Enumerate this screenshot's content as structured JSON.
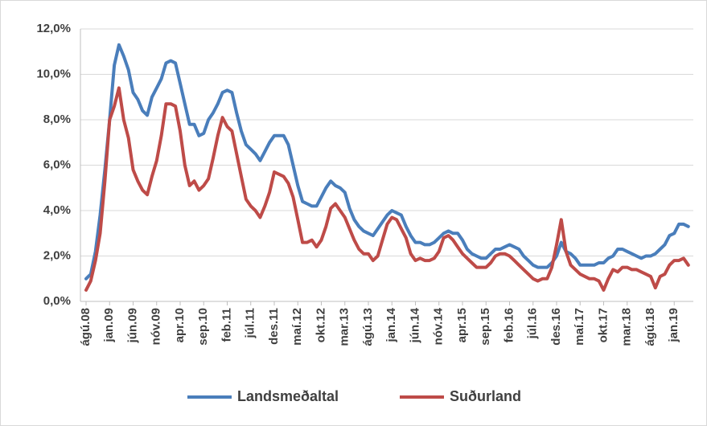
{
  "chart_data": {
    "type": "line",
    "categories": [
      "ágú.08",
      null,
      null,
      null,
      null,
      "jan.09",
      null,
      null,
      null,
      null,
      "jún.09",
      null,
      null,
      null,
      null,
      "nóv.09",
      null,
      null,
      null,
      null,
      "apr.10",
      null,
      null,
      null,
      null,
      "sep.10",
      null,
      null,
      null,
      null,
      "feb.11",
      null,
      null,
      null,
      null,
      "júl.11",
      null,
      null,
      null,
      null,
      "des.11",
      null,
      null,
      null,
      null,
      "maí.12",
      null,
      null,
      null,
      null,
      "okt.12",
      null,
      null,
      null,
      null,
      "mar.13",
      null,
      null,
      null,
      null,
      "ágú.13",
      null,
      null,
      null,
      null,
      "jan.14",
      null,
      null,
      null,
      null,
      "jún.14",
      null,
      null,
      null,
      null,
      "nóv.14",
      null,
      null,
      null,
      null,
      "apr.15",
      null,
      null,
      null,
      null,
      "sep.15",
      null,
      null,
      null,
      null,
      "feb.16",
      null,
      null,
      null,
      null,
      "júl.16",
      null,
      null,
      null,
      null,
      "des.16",
      null,
      null,
      null,
      null,
      "maí.17",
      null,
      null,
      null,
      null,
      "okt.17",
      null,
      null,
      null,
      null,
      "mar.18",
      null,
      null,
      null,
      null,
      "ágú.18",
      null,
      null,
      null,
      null,
      "jan.19",
      null,
      null,
      null
    ],
    "series": [
      {
        "name": "Landsmeðaltal",
        "color": "#4a7ebb",
        "values": [
          1.0,
          1.2,
          2.2,
          3.8,
          5.8,
          8.0,
          10.4,
          11.3,
          10.8,
          10.2,
          9.2,
          8.9,
          8.4,
          8.2,
          9.0,
          9.4,
          9.8,
          10.5,
          10.6,
          10.5,
          9.6,
          8.7,
          7.8,
          7.8,
          7.3,
          7.4,
          8.0,
          8.3,
          8.7,
          9.2,
          9.3,
          9.2,
          8.3,
          7.5,
          6.9,
          6.7,
          6.5,
          6.2,
          6.6,
          7.0,
          7.3,
          7.3,
          7.3,
          6.9,
          6.0,
          5.1,
          4.4,
          4.3,
          4.2,
          4.2,
          4.6,
          5.0,
          5.3,
          5.1,
          5.0,
          4.8,
          4.1,
          3.6,
          3.3,
          3.1,
          3.0,
          2.9,
          3.2,
          3.5,
          3.8,
          4.0,
          3.9,
          3.8,
          3.3,
          2.9,
          2.6,
          2.6,
          2.5,
          2.5,
          2.6,
          2.8,
          3.0,
          3.1,
          3.0,
          3.0,
          2.7,
          2.3,
          2.1,
          2.0,
          1.9,
          1.9,
          2.1,
          2.3,
          2.3,
          2.4,
          2.5,
          2.4,
          2.3,
          2.0,
          1.8,
          1.6,
          1.5,
          1.5,
          1.5,
          1.7,
          2.0,
          2.6,
          2.2,
          2.1,
          1.9,
          1.6,
          1.6,
          1.6,
          1.6,
          1.7,
          1.7,
          1.9,
          2.0,
          2.3,
          2.3,
          2.2,
          2.1,
          2.0,
          1.9,
          2.0,
          2.0,
          2.1,
          2.3,
          2.5,
          2.9,
          3.0,
          3.4,
          3.4,
          3.3
        ]
      },
      {
        "name": "Suðurland",
        "color": "#be4b48",
        "values": [
          0.5,
          0.9,
          1.8,
          3.0,
          5.3,
          8.0,
          8.6,
          9.4,
          8.0,
          7.2,
          5.8,
          5.3,
          4.9,
          4.7,
          5.5,
          6.2,
          7.3,
          8.7,
          8.7,
          8.6,
          7.5,
          6.0,
          5.1,
          5.3,
          4.9,
          5.1,
          5.4,
          6.3,
          7.3,
          8.1,
          7.7,
          7.5,
          6.5,
          5.5,
          4.5,
          4.2,
          4.0,
          3.7,
          4.2,
          4.8,
          5.7,
          5.6,
          5.5,
          5.2,
          4.6,
          3.6,
          2.6,
          2.6,
          2.7,
          2.4,
          2.7,
          3.3,
          4.1,
          4.3,
          4.0,
          3.7,
          3.2,
          2.7,
          2.3,
          2.1,
          2.1,
          1.8,
          2.0,
          2.7,
          3.4,
          3.7,
          3.6,
          3.2,
          2.8,
          2.1,
          1.8,
          1.9,
          1.8,
          1.8,
          1.9,
          2.2,
          2.8,
          2.9,
          2.7,
          2.4,
          2.1,
          1.9,
          1.7,
          1.5,
          1.5,
          1.5,
          1.7,
          2.0,
          2.1,
          2.1,
          2.0,
          1.8,
          1.6,
          1.4,
          1.2,
          1.0,
          0.9,
          1.0,
          1.0,
          1.5,
          2.5,
          3.6,
          2.2,
          1.6,
          1.4,
          1.2,
          1.1,
          1.0,
          1.0,
          0.9,
          0.5,
          1.0,
          1.4,
          1.3,
          1.5,
          1.5,
          1.4,
          1.4,
          1.3,
          1.2,
          1.1,
          0.6,
          1.1,
          1.2,
          1.6,
          1.8,
          1.8,
          1.9,
          1.6
        ]
      }
    ],
    "ylim": [
      0,
      12
    ],
    "yticks": [
      {
        "value": 0,
        "label": "0,0%"
      },
      {
        "value": 2,
        "label": "2,0%"
      },
      {
        "value": 4,
        "label": "4,0%"
      },
      {
        "value": 6,
        "label": "6,0%"
      },
      {
        "value": 8,
        "label": "8,0%"
      },
      {
        "value": 10,
        "label": "10,0%"
      },
      {
        "value": 12,
        "label": "12,0%"
      }
    ],
    "grid": true,
    "legend": "bottom"
  }
}
